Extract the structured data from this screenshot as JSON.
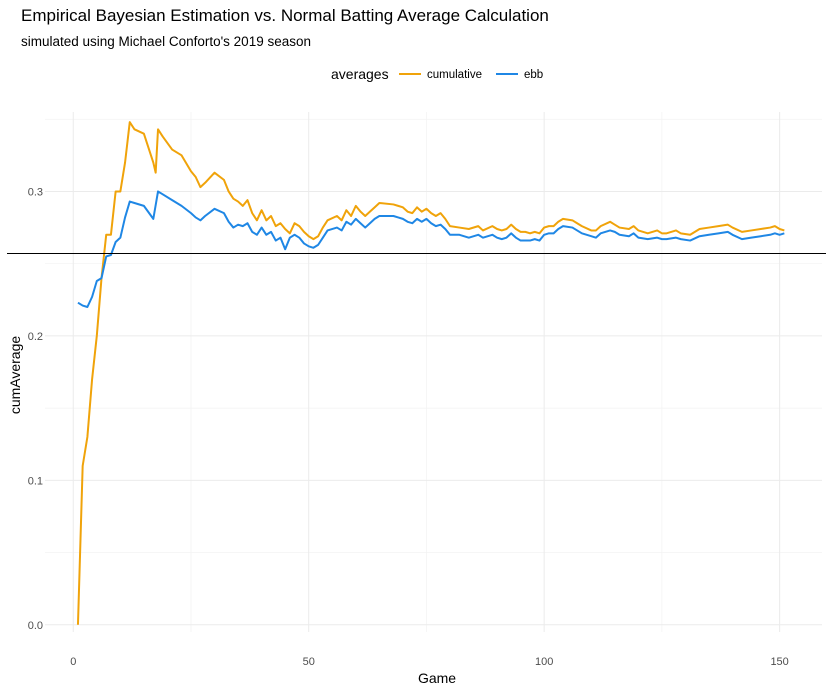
{
  "chart_data": {
    "type": "line",
    "title": "Empirical Bayesian Estimation vs. Normal Batting Average Calculation",
    "subtitle": "simulated using Michael Conforto's 2019 season",
    "xlabel": "Game",
    "ylabel": "cumAverage",
    "xlim": [
      -6,
      159
    ],
    "ylim": [
      -0.005,
      0.355
    ],
    "x_ticks": [
      0,
      50,
      100,
      150
    ],
    "x_tick_labels": [
      "0",
      "50",
      "100",
      "150"
    ],
    "y_ticks": [
      0.0,
      0.1,
      0.2,
      0.3
    ],
    "y_tick_labels": [
      "0.0",
      "0.1",
      "0.2",
      "0.3"
    ],
    "grid": true,
    "legend": {
      "title": "averages",
      "position": "top",
      "entries": [
        "cumulative",
        "ebb"
      ]
    },
    "reference_line": {
      "orientation": "horizontal",
      "y": 0.257,
      "color": "#000000"
    },
    "series": [
      {
        "name": "cumulative",
        "color": "#f0a30a",
        "points": [
          [
            1,
            0.0
          ],
          [
            2,
            0.11
          ],
          [
            3,
            0.13
          ],
          [
            4,
            0.17
          ],
          [
            5,
            0.2
          ],
          [
            6,
            0.24
          ],
          [
            7,
            0.27
          ],
          [
            8,
            0.27
          ],
          [
            9,
            0.3
          ],
          [
            10,
            0.3
          ],
          [
            11,
            0.32
          ],
          [
            12,
            0.348
          ],
          [
            13,
            0.343
          ],
          [
            15,
            0.34
          ],
          [
            17,
            0.32
          ],
          [
            17.5,
            0.313
          ],
          [
            18,
            0.343
          ],
          [
            19,
            0.338
          ],
          [
            21,
            0.329
          ],
          [
            23,
            0.325
          ],
          [
            25,
            0.314
          ],
          [
            26,
            0.31
          ],
          [
            27,
            0.303
          ],
          [
            28,
            0.306
          ],
          [
            30,
            0.313
          ],
          [
            32,
            0.308
          ],
          [
            33,
            0.3
          ],
          [
            34,
            0.295
          ],
          [
            35,
            0.293
          ],
          [
            36,
            0.29
          ],
          [
            37,
            0.294
          ],
          [
            38,
            0.285
          ],
          [
            39,
            0.28
          ],
          [
            40,
            0.287
          ],
          [
            41,
            0.28
          ],
          [
            42,
            0.283
          ],
          [
            43,
            0.276
          ],
          [
            44,
            0.278
          ],
          [
            45,
            0.274
          ],
          [
            46,
            0.271
          ],
          [
            47,
            0.278
          ],
          [
            48,
            0.276
          ],
          [
            49,
            0.272
          ],
          [
            50,
            0.269
          ],
          [
            51,
            0.267
          ],
          [
            52,
            0.269
          ],
          [
            53,
            0.275
          ],
          [
            54,
            0.28
          ],
          [
            56,
            0.283
          ],
          [
            57,
            0.28
          ],
          [
            58,
            0.287
          ],
          [
            59,
            0.283
          ],
          [
            60,
            0.29
          ],
          [
            61,
            0.286
          ],
          [
            62,
            0.283
          ],
          [
            63,
            0.286
          ],
          [
            64,
            0.289
          ],
          [
            65,
            0.292
          ],
          [
            68,
            0.291
          ],
          [
            69,
            0.29
          ],
          [
            70,
            0.289
          ],
          [
            71,
            0.286
          ],
          [
            72,
            0.285
          ],
          [
            73,
            0.289
          ],
          [
            74,
            0.286
          ],
          [
            75,
            0.288
          ],
          [
            76,
            0.285
          ],
          [
            77,
            0.283
          ],
          [
            78,
            0.285
          ],
          [
            79,
            0.281
          ],
          [
            80,
            0.276
          ],
          [
            82,
            0.275
          ],
          [
            84,
            0.274
          ],
          [
            86,
            0.276
          ],
          [
            87,
            0.273
          ],
          [
            89,
            0.276
          ],
          [
            90,
            0.274
          ],
          [
            91,
            0.273
          ],
          [
            92,
            0.274
          ],
          [
            93,
            0.277
          ],
          [
            94,
            0.274
          ],
          [
            95,
            0.272
          ],
          [
            96,
            0.272
          ],
          [
            97,
            0.271
          ],
          [
            98,
            0.272
          ],
          [
            99,
            0.271
          ],
          [
            100,
            0.275
          ],
          [
            101,
            0.276
          ],
          [
            102,
            0.276
          ],
          [
            103,
            0.279
          ],
          [
            104,
            0.281
          ],
          [
            106,
            0.28
          ],
          [
            107,
            0.278
          ],
          [
            108,
            0.276
          ],
          [
            110,
            0.273
          ],
          [
            111,
            0.273
          ],
          [
            112,
            0.276
          ],
          [
            114,
            0.279
          ],
          [
            115,
            0.277
          ],
          [
            116,
            0.275
          ],
          [
            118,
            0.274
          ],
          [
            119,
            0.276
          ],
          [
            120,
            0.273
          ],
          [
            122,
            0.271
          ],
          [
            124,
            0.273
          ],
          [
            125,
            0.271
          ],
          [
            126,
            0.271
          ],
          [
            128,
            0.273
          ],
          [
            129,
            0.271
          ],
          [
            131,
            0.27
          ],
          [
            133,
            0.274
          ],
          [
            135,
            0.275
          ],
          [
            137,
            0.276
          ],
          [
            139,
            0.277
          ],
          [
            140,
            0.275
          ],
          [
            142,
            0.272
          ],
          [
            144,
            0.273
          ],
          [
            146,
            0.274
          ],
          [
            148,
            0.275
          ],
          [
            149,
            0.276
          ],
          [
            150,
            0.274
          ],
          [
            151,
            0.273
          ]
        ]
      },
      {
        "name": "ebb",
        "color": "#1f87e5",
        "points": [
          [
            1,
            0.223
          ],
          [
            2,
            0.221
          ],
          [
            3,
            0.22
          ],
          [
            4,
            0.227
          ],
          [
            5,
            0.238
          ],
          [
            6,
            0.24
          ],
          [
            7,
            0.255
          ],
          [
            8,
            0.256
          ],
          [
            9,
            0.265
          ],
          [
            10,
            0.268
          ],
          [
            11,
            0.282
          ],
          [
            12,
            0.293
          ],
          [
            13,
            0.292
          ],
          [
            15,
            0.29
          ],
          [
            17,
            0.281
          ],
          [
            18,
            0.3
          ],
          [
            19,
            0.298
          ],
          [
            21,
            0.294
          ],
          [
            23,
            0.29
          ],
          [
            25,
            0.285
          ],
          [
            26,
            0.282
          ],
          [
            27,
            0.28
          ],
          [
            28,
            0.283
          ],
          [
            30,
            0.288
          ],
          [
            32,
            0.285
          ],
          [
            33,
            0.279
          ],
          [
            34,
            0.275
          ],
          [
            35,
            0.277
          ],
          [
            36,
            0.276
          ],
          [
            37,
            0.278
          ],
          [
            38,
            0.272
          ],
          [
            39,
            0.27
          ],
          [
            40,
            0.275
          ],
          [
            41,
            0.27
          ],
          [
            42,
            0.272
          ],
          [
            43,
            0.266
          ],
          [
            44,
            0.268
          ],
          [
            45,
            0.26
          ],
          [
            46,
            0.268
          ],
          [
            47,
            0.27
          ],
          [
            48,
            0.268
          ],
          [
            49,
            0.264
          ],
          [
            50,
            0.262
          ],
          [
            51,
            0.261
          ],
          [
            52,
            0.263
          ],
          [
            53,
            0.268
          ],
          [
            54,
            0.273
          ],
          [
            56,
            0.275
          ],
          [
            57,
            0.273
          ],
          [
            58,
            0.279
          ],
          [
            59,
            0.277
          ],
          [
            60,
            0.281
          ],
          [
            61,
            0.278
          ],
          [
            62,
            0.275
          ],
          [
            63,
            0.278
          ],
          [
            64,
            0.281
          ],
          [
            65,
            0.283
          ],
          [
            68,
            0.283
          ],
          [
            69,
            0.282
          ],
          [
            70,
            0.281
          ],
          [
            71,
            0.279
          ],
          [
            72,
            0.278
          ],
          [
            73,
            0.281
          ],
          [
            74,
            0.279
          ],
          [
            75,
            0.281
          ],
          [
            76,
            0.278
          ],
          [
            77,
            0.276
          ],
          [
            78,
            0.277
          ],
          [
            79,
            0.274
          ],
          [
            80,
            0.27
          ],
          [
            82,
            0.27
          ],
          [
            84,
            0.268
          ],
          [
            86,
            0.27
          ],
          [
            87,
            0.268
          ],
          [
            89,
            0.27
          ],
          [
            90,
            0.268
          ],
          [
            91,
            0.267
          ],
          [
            92,
            0.268
          ],
          [
            93,
            0.271
          ],
          [
            94,
            0.268
          ],
          [
            95,
            0.266
          ],
          [
            96,
            0.266
          ],
          [
            97,
            0.266
          ],
          [
            98,
            0.267
          ],
          [
            99,
            0.266
          ],
          [
            100,
            0.27
          ],
          [
            101,
            0.271
          ],
          [
            102,
            0.271
          ],
          [
            103,
            0.274
          ],
          [
            104,
            0.276
          ],
          [
            106,
            0.275
          ],
          [
            107,
            0.273
          ],
          [
            108,
            0.271
          ],
          [
            110,
            0.269
          ],
          [
            111,
            0.268
          ],
          [
            112,
            0.271
          ],
          [
            114,
            0.273
          ],
          [
            115,
            0.272
          ],
          [
            116,
            0.27
          ],
          [
            118,
            0.269
          ],
          [
            119,
            0.271
          ],
          [
            120,
            0.268
          ],
          [
            122,
            0.267
          ],
          [
            124,
            0.268
          ],
          [
            125,
            0.267
          ],
          [
            126,
            0.267
          ],
          [
            128,
            0.268
          ],
          [
            129,
            0.267
          ],
          [
            131,
            0.266
          ],
          [
            133,
            0.269
          ],
          [
            135,
            0.27
          ],
          [
            137,
            0.271
          ],
          [
            139,
            0.272
          ],
          [
            140,
            0.27
          ],
          [
            142,
            0.267
          ],
          [
            144,
            0.268
          ],
          [
            146,
            0.269
          ],
          [
            148,
            0.27
          ],
          [
            149,
            0.271
          ],
          [
            150,
            0.27
          ],
          [
            151,
            0.271
          ]
        ]
      }
    ]
  }
}
